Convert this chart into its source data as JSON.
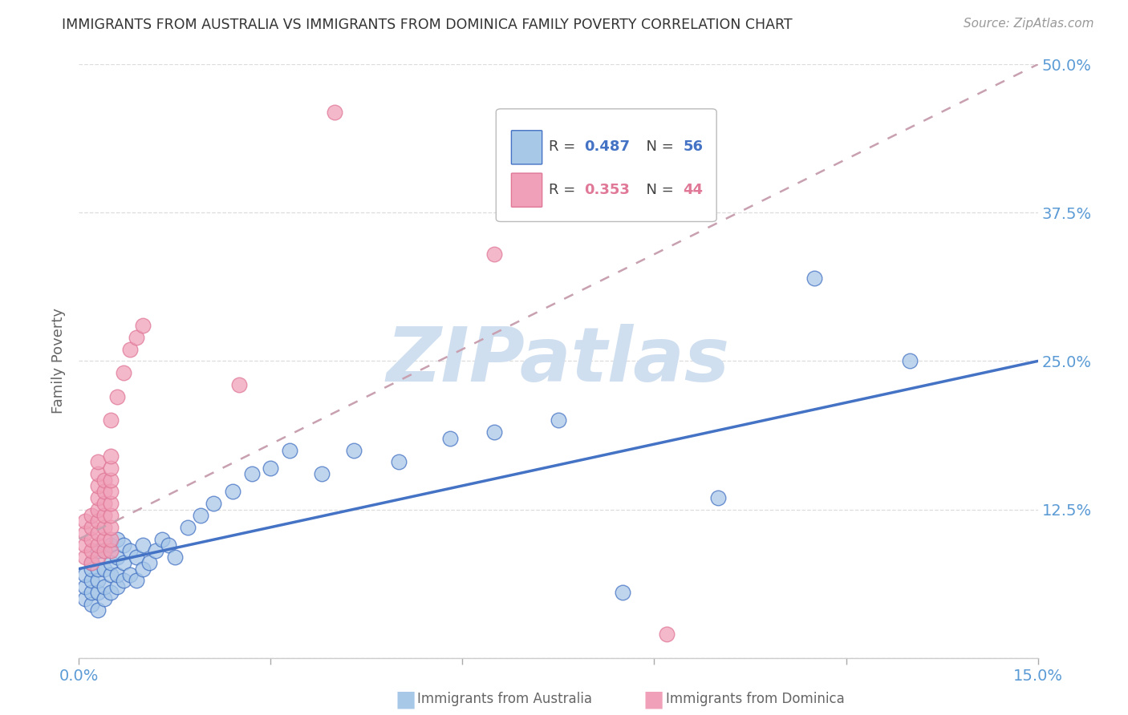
{
  "title": "IMMIGRANTS FROM AUSTRALIA VS IMMIGRANTS FROM DOMINICA FAMILY POVERTY CORRELATION CHART",
  "source": "Source: ZipAtlas.com",
  "ylabel": "Family Poverty",
  "legend_label_1": "Immigrants from Australia",
  "legend_label_2": "Immigrants from Dominica",
  "R1": 0.487,
  "N1": 56,
  "R2": 0.353,
  "N2": 44,
  "color_australia": "#a8c8e8",
  "color_dominica": "#f0a0b8",
  "color_australia_line": "#4472c4",
  "color_dominica_line": "#e07898",
  "color_dominica_dashed": "#c8a0b0",
  "xlim": [
    0.0,
    0.15
  ],
  "ylim": [
    0.0,
    0.5
  ],
  "xticks": [
    0.0,
    0.03,
    0.06,
    0.09,
    0.12,
    0.15
  ],
  "yticks": [
    0.0,
    0.125,
    0.25,
    0.375,
    0.5
  ],
  "watermark": "ZIPatlas",
  "watermark_color": "#d0dff0",
  "australia_x": [
    0.001,
    0.001,
    0.001,
    0.002,
    0.002,
    0.002,
    0.002,
    0.002,
    0.003,
    0.003,
    0.003,
    0.003,
    0.003,
    0.004,
    0.004,
    0.004,
    0.004,
    0.005,
    0.005,
    0.005,
    0.005,
    0.006,
    0.006,
    0.006,
    0.006,
    0.007,
    0.007,
    0.007,
    0.008,
    0.008,
    0.009,
    0.009,
    0.01,
    0.01,
    0.011,
    0.012,
    0.013,
    0.014,
    0.015,
    0.017,
    0.019,
    0.021,
    0.024,
    0.027,
    0.03,
    0.033,
    0.038,
    0.043,
    0.05,
    0.058,
    0.065,
    0.075,
    0.085,
    0.1,
    0.115,
    0.13
  ],
  "australia_y": [
    0.05,
    0.06,
    0.07,
    0.045,
    0.055,
    0.065,
    0.075,
    0.08,
    0.04,
    0.055,
    0.065,
    0.075,
    0.09,
    0.05,
    0.06,
    0.075,
    0.09,
    0.055,
    0.07,
    0.08,
    0.095,
    0.06,
    0.07,
    0.085,
    0.1,
    0.065,
    0.08,
    0.095,
    0.07,
    0.09,
    0.065,
    0.085,
    0.075,
    0.095,
    0.08,
    0.09,
    0.1,
    0.095,
    0.085,
    0.11,
    0.12,
    0.13,
    0.14,
    0.155,
    0.16,
    0.175,
    0.155,
    0.175,
    0.165,
    0.185,
    0.19,
    0.2,
    0.055,
    0.135,
    0.32,
    0.25
  ],
  "dominica_x": [
    0.001,
    0.001,
    0.001,
    0.001,
    0.002,
    0.002,
    0.002,
    0.002,
    0.002,
    0.003,
    0.003,
    0.003,
    0.003,
    0.003,
    0.003,
    0.003,
    0.003,
    0.003,
    0.004,
    0.004,
    0.004,
    0.004,
    0.004,
    0.004,
    0.004,
    0.005,
    0.005,
    0.005,
    0.005,
    0.005,
    0.005,
    0.005,
    0.005,
    0.005,
    0.005,
    0.006,
    0.007,
    0.008,
    0.009,
    0.01,
    0.025,
    0.04,
    0.065,
    0.092
  ],
  "dominica_y": [
    0.085,
    0.095,
    0.105,
    0.115,
    0.08,
    0.09,
    0.1,
    0.11,
    0.12,
    0.085,
    0.095,
    0.105,
    0.115,
    0.125,
    0.135,
    0.145,
    0.155,
    0.165,
    0.09,
    0.1,
    0.11,
    0.12,
    0.13,
    0.14,
    0.15,
    0.09,
    0.1,
    0.11,
    0.12,
    0.13,
    0.14,
    0.15,
    0.16,
    0.17,
    0.2,
    0.22,
    0.24,
    0.26,
    0.27,
    0.28,
    0.23,
    0.46,
    0.34,
    0.02
  ],
  "aus_line_x0": 0.0,
  "aus_line_y0": 0.075,
  "aus_line_x1": 0.15,
  "aus_line_y1": 0.25,
  "dom_line_x0": 0.0,
  "dom_line_y0": 0.1,
  "dom_line_x1": 0.15,
  "dom_line_y1": 0.5,
  "background_color": "#ffffff",
  "grid_color": "#dddddd",
  "title_color": "#333333",
  "tick_label_color": "#5b9bd5"
}
